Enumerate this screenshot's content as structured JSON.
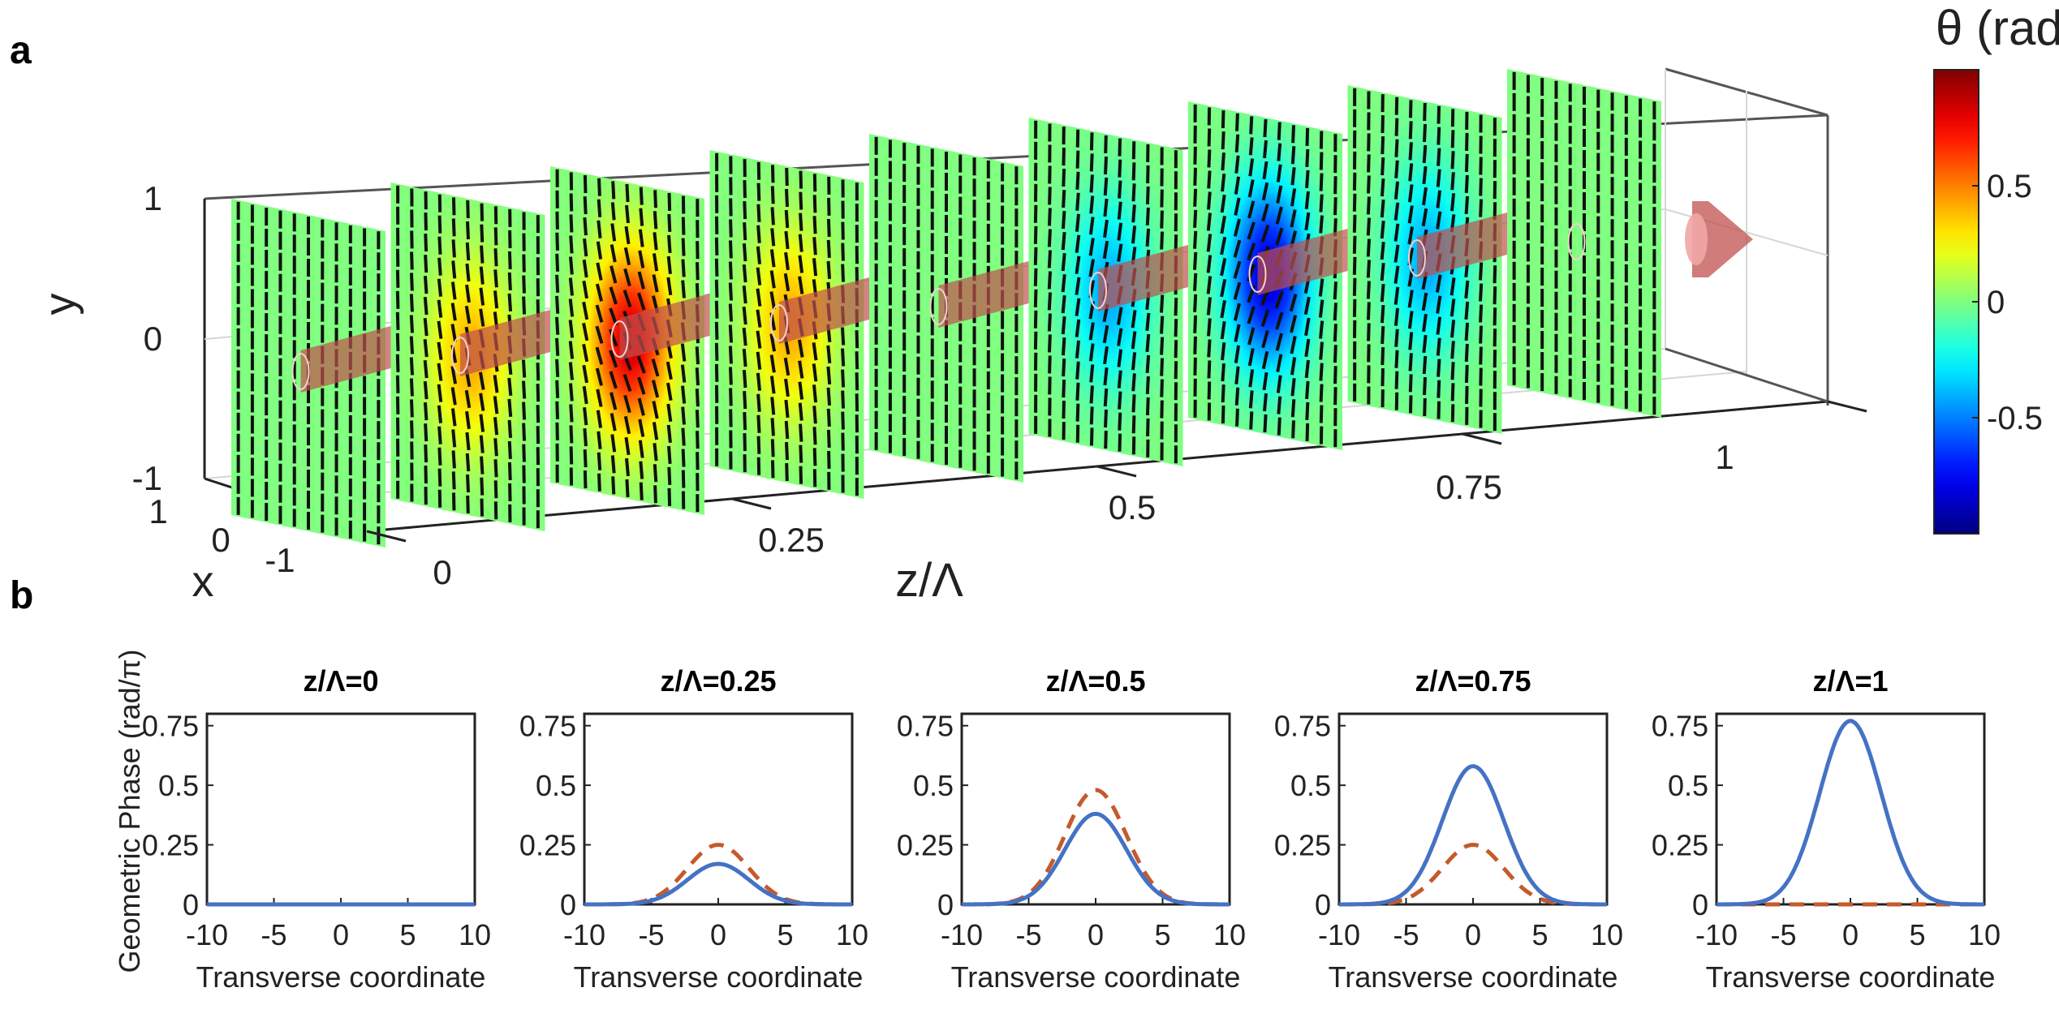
{
  "panels": {
    "a_label": "a",
    "b_label": "b"
  },
  "colors": {
    "solid": "#4472c4",
    "dashed": "#c55a2b",
    "beam": "#c0504d"
  },
  "chart_data": [
    {
      "type": "3d-slices",
      "title": "",
      "panel": "a",
      "xlabel": "z/Λ",
      "ylabel": "y",
      "zlabel": "x",
      "z_ticks": [
        "0",
        "0.25",
        "0.5",
        "0.75",
        "1"
      ],
      "y_ticks": [
        "1",
        "0",
        "-1"
      ],
      "x_ticks": [
        "1",
        "0",
        "-1"
      ],
      "slice_positions": [
        0,
        0.125,
        0.25,
        0.375,
        0.5,
        0.625,
        0.75,
        0.875,
        1.0
      ],
      "slice_peak_theta": [
        0,
        0.42,
        0.85,
        0.42,
        0,
        -0.42,
        -0.85,
        -0.42,
        0
      ],
      "colorbar": {
        "label": "θ (rad)",
        "ticks": [
          "0.5",
          "0",
          "-0.5"
        ],
        "range": [
          -1,
          1
        ],
        "colormap": "jet"
      }
    },
    {
      "type": "line",
      "panel": "b",
      "ylabel": "Geometric Phase (rad/π)",
      "xlabel": "Transverse coordinate",
      "xlim": [
        -10,
        10
      ],
      "ylim": [
        0,
        0.8
      ],
      "x_ticks": [
        "-10",
        "-5",
        "0",
        "5",
        "10"
      ],
      "y_ticks": [
        "0",
        "0.25",
        "0.5",
        "0.75"
      ],
      "gaussian_sigma": 2.3,
      "series_names": [
        "solid",
        "dashed"
      ],
      "subplots": [
        {
          "title": "z/Λ=0",
          "solid_peak": 0.0,
          "dashed_peak": 0.0
        },
        {
          "title": "z/Λ=0.25",
          "solid_peak": 0.17,
          "dashed_peak": 0.25
        },
        {
          "title": "z/Λ=0.5",
          "solid_peak": 0.38,
          "dashed_peak": 0.48
        },
        {
          "title": "z/Λ=0.75",
          "solid_peak": 0.58,
          "dashed_peak": 0.25
        },
        {
          "title": "z/Λ=1",
          "solid_peak": 0.77,
          "dashed_peak": 0.0
        }
      ]
    }
  ]
}
